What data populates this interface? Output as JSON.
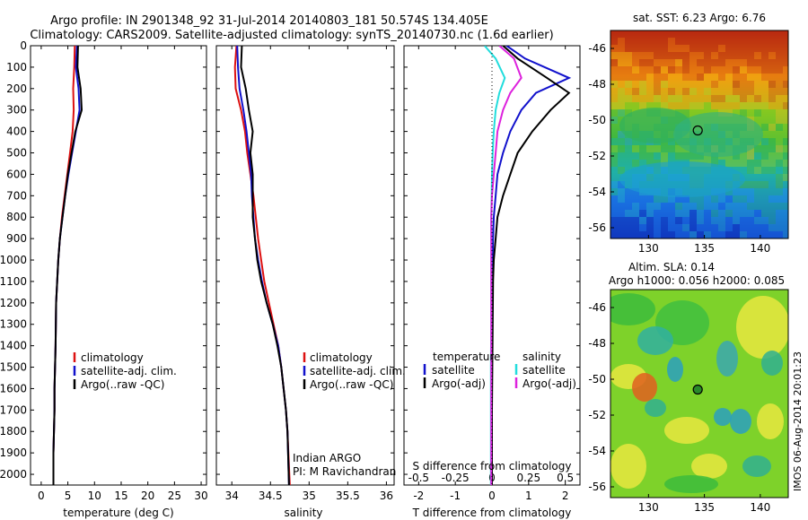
{
  "header": {
    "line1": "Argo profile: IN 2901348_92 31-Jul-2014 20140803_181 50.574S 134.405E",
    "line2": "Climatology: CARS2009. Satellite-adjusted climatology: synTS_20140730.nc (1.6d earlier)"
  },
  "panels": {
    "temperature": {
      "xlabel": "temperature (deg C)",
      "legend": [
        "climatology",
        "satellite-adj. clim.",
        "Argo(..raw -QC)"
      ]
    },
    "salinity": {
      "xlabel": "salinity",
      "legend": [
        "climatology",
        "satellite-adj. clim.",
        "Argo(..raw -QC)"
      ],
      "note1": "Indian ARGO",
      "note2": "PI: M Ravichandran"
    },
    "difference": {
      "xlabel_top": "S difference from climatology",
      "xlabel_bottom": "T difference from climatology",
      "legend_temp_title": "temperature",
      "legend_sal_title": "salinity",
      "legend_temp": [
        "satellite",
        "Argo(-adj)"
      ],
      "legend_sal": [
        "satellite",
        "Argo(-adj)"
      ]
    }
  },
  "maps": {
    "sst_title": "sat. SST: 6.23 Argo: 6.76",
    "sla_title1": "Altim. SLA: 0.14",
    "sla_title2": "Argo h1000: 0.056 h2000: 0.085",
    "credit": "IMOS 06-Aug-2014 20:01:23",
    "xticks": [
      "130",
      "135",
      "140"
    ],
    "yticks": [
      "-46",
      "-48",
      "-50",
      "-52",
      "-54",
      "-56"
    ],
    "float_lon": 134.405,
    "float_lat": -50.574
  },
  "colors": {
    "climatology": "#dd1111",
    "satellite": "#1111cc",
    "argo": "#000000",
    "sal_satellite": "#22dddd",
    "sal_argo": "#dd22dd"
  },
  "chart_data": [
    {
      "type": "line",
      "xlabel": "temperature (deg C)",
      "ylabel": "",
      "xlim": [
        -2,
        31
      ],
      "ylim": [
        2050,
        0
      ],
      "xticks": [
        0,
        5,
        10,
        15,
        20,
        25,
        30
      ],
      "yticks": [
        0,
        100,
        200,
        300,
        400,
        500,
        600,
        700,
        800,
        900,
        1000,
        1100,
        1200,
        1300,
        1400,
        1500,
        1600,
        1700,
        1800,
        1900,
        2000
      ],
      "series": [
        {
          "name": "climatology",
          "color": "#dd1111",
          "x": [
            6.3,
            6.2,
            6.0,
            6.1,
            5.9,
            5.4,
            4.9,
            4.4,
            3.9,
            3.5,
            3.2,
            3.0,
            2.8,
            2.7,
            2.6,
            2.5,
            2.5,
            2.4,
            2.3,
            2.3
          ],
          "y": [
            0,
            100,
            200,
            300,
            400,
            500,
            600,
            700,
            800,
            900,
            1000,
            1100,
            1200,
            1400,
            1500,
            1600,
            1700,
            1800,
            1900,
            2050
          ]
        },
        {
          "name": "satellite-adj. clim.",
          "color": "#1111cc",
          "x": [
            6.7,
            6.5,
            7.0,
            7.2,
            6.5,
            5.8,
            5.1,
            4.5,
            4.0,
            3.5,
            3.2,
            3.0,
            2.8,
            2.7,
            2.6,
            2.5,
            2.5,
            2.4,
            2.3,
            2.3
          ],
          "y": [
            0,
            100,
            200,
            300,
            400,
            500,
            600,
            700,
            800,
            900,
            1000,
            1100,
            1200,
            1400,
            1500,
            1600,
            1700,
            1800,
            1900,
            2050
          ]
        },
        {
          "name": "Argo(..raw -QC)",
          "color": "#000000",
          "x": [
            6.9,
            6.8,
            7.4,
            7.6,
            6.4,
            5.7,
            5.0,
            4.5,
            4.0,
            3.5,
            3.2,
            3.0,
            2.8,
            2.7,
            2.6,
            2.5,
            2.5,
            2.4,
            2.3,
            2.3
          ],
          "y": [
            0,
            100,
            200,
            300,
            400,
            500,
            600,
            700,
            800,
            900,
            1000,
            1100,
            1200,
            1400,
            1500,
            1600,
            1700,
            1800,
            1900,
            2050
          ]
        }
      ]
    },
    {
      "type": "line",
      "xlabel": "salinity",
      "ylabel": "",
      "xlim": [
        33.8,
        36.1
      ],
      "ylim": [
        2050,
        0
      ],
      "xticks": [
        34,
        34.5,
        35,
        35.5,
        36
      ],
      "series": [
        {
          "name": "climatology",
          "color": "#dd1111",
          "x": [
            34.06,
            34.04,
            34.05,
            34.12,
            34.17,
            34.2,
            34.24,
            34.28,
            34.31,
            34.34,
            34.38,
            34.42,
            34.48,
            34.54,
            34.6,
            34.64,
            34.67,
            34.7,
            34.72,
            34.75
          ],
          "y": [
            0,
            100,
            200,
            300,
            400,
            500,
            600,
            700,
            800,
            900,
            1000,
            1100,
            1200,
            1300,
            1400,
            1500,
            1600,
            1700,
            1800,
            2050
          ]
        },
        {
          "name": "satellite-adj. clim.",
          "color": "#1111cc",
          "x": [
            34.07,
            34.08,
            34.1,
            34.15,
            34.19,
            34.22,
            34.25,
            34.26,
            34.28,
            34.3,
            34.34,
            34.39,
            34.45,
            34.53,
            34.6,
            34.64,
            34.67,
            34.7,
            34.72,
            34.74
          ],
          "y": [
            0,
            100,
            200,
            300,
            400,
            500,
            600,
            700,
            800,
            900,
            1000,
            1100,
            1200,
            1300,
            1400,
            1500,
            1600,
            1700,
            1800,
            2050
          ]
        },
        {
          "name": "Argo(..raw -QC)",
          "color": "#000000",
          "x": [
            34.13,
            34.12,
            34.18,
            34.22,
            34.27,
            34.24,
            34.27,
            34.27,
            34.27,
            34.3,
            34.33,
            34.38,
            34.45,
            34.53,
            34.59,
            34.64,
            34.67,
            34.7,
            34.72,
            34.74
          ],
          "y": [
            0,
            100,
            200,
            300,
            400,
            500,
            600,
            700,
            800,
            900,
            1000,
            1100,
            1200,
            1300,
            1400,
            1500,
            1600,
            1700,
            1800,
            2050
          ]
        }
      ]
    },
    {
      "type": "line",
      "xlabel": "T difference from climatology",
      "xlabel_top": "S difference from climatology",
      "xlim": [
        -2.4,
        2.4
      ],
      "ylim": [
        2050,
        0
      ],
      "xticks": [
        -2,
        -1,
        0,
        1,
        2
      ],
      "xticks_top": [
        -0.5,
        -0.25,
        0,
        0.25,
        0.5
      ],
      "series": [
        {
          "name": "temperature satellite",
          "color": "#1111cc",
          "x": [
            0.4,
            0.9,
            2.1,
            1.2,
            0.8,
            0.5,
            0.3,
            0.15,
            0.1,
            0.05,
            0.03,
            0.02,
            0.02,
            0.01,
            0.0,
            0.0,
            0.0,
            0.0,
            0.0
          ],
          "y": [
            0,
            60,
            150,
            220,
            300,
            400,
            500,
            600,
            700,
            800,
            900,
            1000,
            1100,
            1300,
            1500,
            1700,
            1800,
            1900,
            2050
          ]
        },
        {
          "name": "temperature Argo(-adj)",
          "color": "#000000",
          "x": [
            0.3,
            0.7,
            1.5,
            2.1,
            1.6,
            1.1,
            0.7,
            0.5,
            0.3,
            0.15,
            0.1,
            0.05,
            0.03,
            0.02,
            0.01,
            0.0,
            0.0,
            0.0,
            0.0
          ],
          "y": [
            0,
            60,
            150,
            220,
            300,
            400,
            500,
            600,
            700,
            800,
            900,
            1000,
            1100,
            1300,
            1500,
            1700,
            1800,
            1900,
            2050
          ]
        },
        {
          "name": "salinity satellite",
          "color": "#22dddd",
          "x": [
            -0.2,
            0.1,
            0.35,
            0.2,
            0.1,
            0.05,
            0.02,
            0.0,
            -0.01,
            -0.02,
            -0.02,
            -0.02,
            -0.02,
            -0.02,
            -0.03,
            -0.03,
            -0.03,
            -0.03,
            -0.03
          ],
          "y": [
            0,
            60,
            150,
            220,
            300,
            400,
            500,
            600,
            700,
            800,
            900,
            1000,
            1100,
            1300,
            1500,
            1700,
            1800,
            1900,
            2050
          ]
        },
        {
          "name": "salinity Argo(-adj)",
          "color": "#dd22dd",
          "x": [
            0.2,
            0.6,
            0.8,
            0.5,
            0.3,
            0.15,
            0.1,
            0.05,
            0.0,
            -0.02,
            -0.02,
            -0.02,
            -0.02,
            -0.02,
            -0.02,
            -0.02,
            -0.02,
            -0.02,
            -0.02
          ],
          "y": [
            0,
            60,
            150,
            220,
            300,
            400,
            500,
            600,
            700,
            800,
            900,
            1000,
            1100,
            1300,
            1500,
            1700,
            1800,
            1900,
            2050
          ]
        }
      ]
    }
  ]
}
